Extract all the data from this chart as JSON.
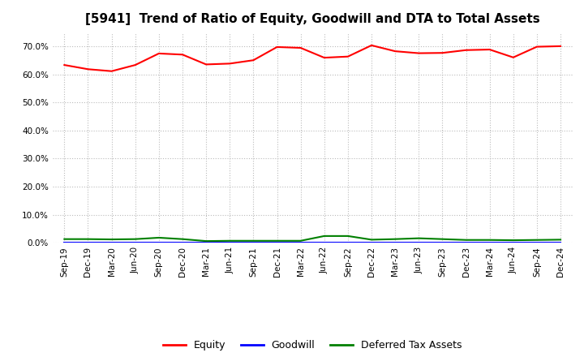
{
  "title": "[5941]  Trend of Ratio of Equity, Goodwill and DTA to Total Assets",
  "x_labels": [
    "Sep-19",
    "Dec-19",
    "Mar-20",
    "Jun-20",
    "Sep-20",
    "Dec-20",
    "Mar-21",
    "Jun-21",
    "Sep-21",
    "Dec-21",
    "Mar-22",
    "Jun-22",
    "Sep-22",
    "Dec-22",
    "Mar-23",
    "Jun-23",
    "Sep-23",
    "Dec-23",
    "Mar-24",
    "Jun-24",
    "Sep-24",
    "Dec-24"
  ],
  "equity": [
    0.633,
    0.618,
    0.611,
    0.633,
    0.674,
    0.67,
    0.635,
    0.638,
    0.65,
    0.697,
    0.694,
    0.659,
    0.663,
    0.703,
    0.682,
    0.675,
    0.676,
    0.686,
    0.688,
    0.66,
    0.698,
    0.7
  ],
  "goodwill": [
    0.0,
    0.0,
    0.0,
    0.0,
    0.0,
    0.0,
    0.0,
    0.0,
    0.0,
    0.0,
    0.0,
    0.0,
    0.0,
    0.0,
    0.0,
    0.0,
    0.0,
    0.0,
    0.0,
    0.0,
    0.0,
    0.0
  ],
  "dta": [
    0.013,
    0.013,
    0.012,
    0.013,
    0.018,
    0.013,
    0.006,
    0.007,
    0.007,
    0.007,
    0.007,
    0.024,
    0.024,
    0.011,
    0.013,
    0.016,
    0.013,
    0.01,
    0.01,
    0.009,
    0.01,
    0.011
  ],
  "equity_color": "#FF0000",
  "goodwill_color": "#0000FF",
  "dta_color": "#008000",
  "background_color": "#FFFFFF",
  "grid_color": "#BBBBBB",
  "ylim": [
    0.0,
    0.75
  ],
  "yticks": [
    0.0,
    0.1,
    0.2,
    0.3,
    0.4,
    0.5,
    0.6,
    0.7
  ],
  "title_fontsize": 11,
  "legend_labels": [
    "Equity",
    "Goodwill",
    "Deferred Tax Assets"
  ],
  "legend_fontsize": 9,
  "tick_fontsize": 7.5
}
